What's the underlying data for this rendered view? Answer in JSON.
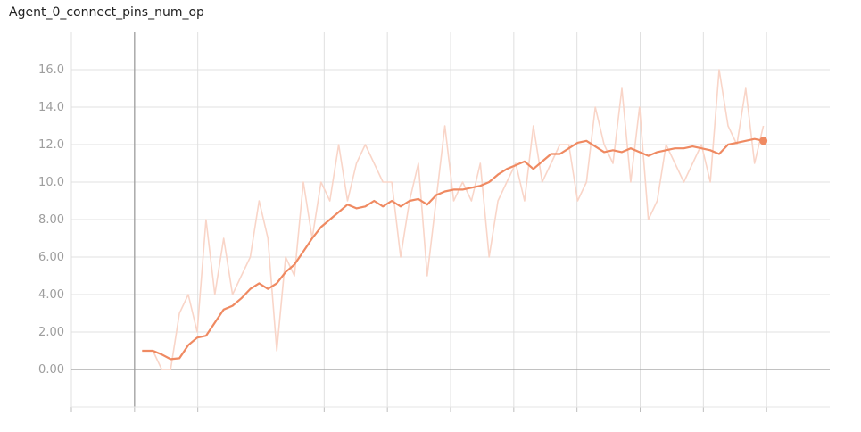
{
  "chart_data": {
    "type": "line",
    "title": "Agent_0_connect_pins_num_op",
    "xlabel": "",
    "ylabel": "",
    "ylim": [
      -2,
      18
    ],
    "y_ticks": [
      0,
      2,
      4,
      6,
      8,
      10,
      12,
      14,
      16
    ],
    "y_tick_labels": [
      "0.00",
      "2.00",
      "4.00",
      "6.00",
      "8.00",
      "10.0",
      "12.0",
      "14.0",
      "16.0"
    ],
    "x_ticks": [
      -1,
      0,
      1,
      2,
      3,
      4,
      5,
      6,
      7,
      8,
      9,
      10
    ],
    "x_tick_labels": [],
    "xlim": [
      -1,
      11
    ],
    "grid": true,
    "colors": {
      "smoothed": "#ef8a62",
      "raw": "#f9d5c8",
      "axis": "#9e9e9e",
      "grid": "#e0e0e0"
    },
    "series": [
      {
        "name": "raw",
        "x": [
          0.12,
          0.29,
          0.43,
          0.57,
          0.71,
          0.85,
          0.99,
          1.13,
          1.27,
          1.41,
          1.55,
          1.69,
          1.83,
          1.97,
          2.11,
          2.25,
          2.39,
          2.53,
          2.67,
          2.81,
          2.95,
          3.09,
          3.23,
          3.37,
          3.51,
          3.65,
          3.79,
          3.93,
          4.07,
          4.21,
          4.35,
          4.49,
          4.63,
          4.77,
          4.91,
          5.05,
          5.19,
          5.33,
          5.47,
          5.61,
          5.75,
          5.89,
          6.03,
          6.17,
          6.31,
          6.45,
          6.59,
          6.73,
          6.87,
          7.01,
          7.15,
          7.29,
          7.43,
          7.57,
          7.71,
          7.85,
          7.99,
          8.13,
          8.27,
          8.41,
          8.55,
          8.69,
          8.83,
          8.97,
          9.11,
          9.25,
          9.39,
          9.53,
          9.67,
          9.81,
          9.95
        ],
        "values": [
          1,
          1,
          0,
          0,
          3,
          4,
          2,
          8,
          4,
          7,
          4,
          5,
          6,
          9,
          7,
          1,
          6,
          5,
          10,
          7,
          10,
          9,
          12,
          9,
          11,
          12,
          11,
          10,
          10,
          6,
          9,
          11,
          5,
          9,
          13,
          9,
          10,
          9,
          11,
          6,
          9,
          10,
          11,
          9,
          13,
          10,
          11,
          12,
          12,
          9,
          10,
          14,
          12,
          11,
          15,
          10,
          14,
          8,
          9,
          12,
          11,
          10,
          11,
          12,
          10,
          16,
          13,
          12,
          15,
          11,
          13
        ]
      },
      {
        "name": "smoothed",
        "x": [
          0.12,
          0.29,
          0.43,
          0.57,
          0.71,
          0.85,
          0.99,
          1.13,
          1.27,
          1.41,
          1.55,
          1.69,
          1.83,
          1.97,
          2.11,
          2.25,
          2.39,
          2.53,
          2.67,
          2.81,
          2.95,
          3.09,
          3.23,
          3.37,
          3.51,
          3.65,
          3.79,
          3.93,
          4.07,
          4.21,
          4.35,
          4.49,
          4.63,
          4.77,
          4.91,
          5.05,
          5.19,
          5.33,
          5.47,
          5.61,
          5.75,
          5.89,
          6.03,
          6.17,
          6.31,
          6.45,
          6.59,
          6.73,
          6.87,
          7.01,
          7.15,
          7.29,
          7.43,
          7.57,
          7.71,
          7.85,
          7.99,
          8.13,
          8.27,
          8.41,
          8.55,
          8.69,
          8.83,
          8.97,
          9.11,
          9.25,
          9.39,
          9.53,
          9.67,
          9.81,
          9.95
        ],
        "values": [
          1.0,
          1.0,
          0.8,
          0.55,
          0.6,
          1.3,
          1.7,
          1.8,
          2.5,
          3.2,
          3.4,
          3.8,
          4.3,
          4.6,
          4.3,
          4.6,
          5.2,
          5.6,
          6.3,
          7.0,
          7.6,
          8.0,
          8.4,
          8.8,
          8.6,
          8.7,
          9.0,
          8.7,
          9.0,
          8.7,
          9.0,
          9.1,
          8.8,
          9.3,
          9.5,
          9.6,
          9.6,
          9.7,
          9.8,
          10.0,
          10.4,
          10.7,
          10.9,
          11.1,
          10.7,
          11.1,
          11.5,
          11.5,
          11.8,
          12.1,
          12.2,
          11.9,
          11.6,
          11.7,
          11.6,
          11.8,
          11.6,
          11.4,
          11.6,
          11.7,
          11.8,
          11.8,
          11.9,
          11.8,
          11.7,
          11.5,
          12.0,
          12.1,
          12.2,
          12.3,
          12.2
        ]
      }
    ]
  }
}
